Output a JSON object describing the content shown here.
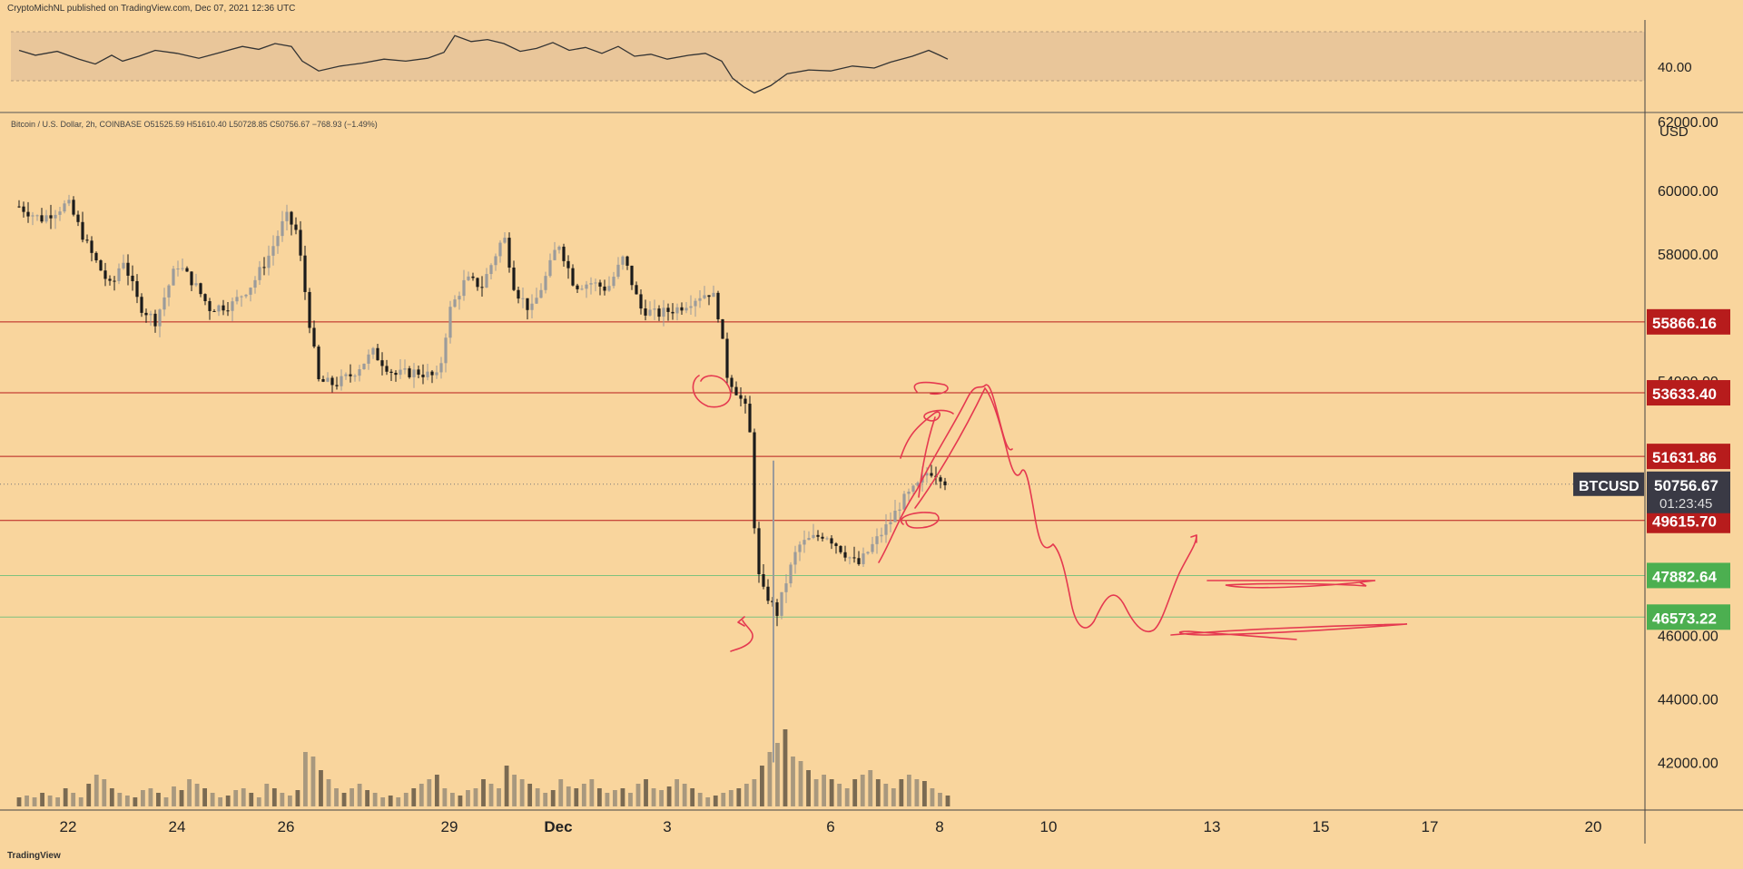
{
  "header": {
    "publisher": "CryptoMichNL published on TradingView.com, Dec 07, 2021 12:36 UTC"
  },
  "footer": {
    "brand": "TradingView"
  },
  "symbol_info": "Bitcoin / U.S. Dollar, 2h, COINBASE  O51525.59  H51610.40  L50728.85  C50756.67  −768.93 (−1.49%)",
  "rsi_label": "40.00",
  "currency": "USD",
  "colors": {
    "background": "#f9d59d",
    "up": "#9b9b9b",
    "down": "#1b1b1b",
    "resistance": "#b71c1c",
    "support": "#4caf50",
    "drawing": "#e53950"
  },
  "chart_data": {
    "type": "candlestick",
    "interval": "2h",
    "ylim": [
      40500,
      62400
    ],
    "y_ticks": [
      42000,
      44000,
      46000,
      48000,
      50000,
      52000,
      54000,
      56000,
      58000,
      60000
    ],
    "y_tick_labels": [
      "42000.00",
      "44000.00",
      "46000.00",
      "",
      "",
      "",
      "54000.00",
      "",
      "58000.00",
      "60000.00"
    ],
    "y_top_label": "62000.00",
    "x_ticks": [
      {
        "label": "22",
        "x": 0.0
      },
      {
        "label": "24",
        "x": 2.0
      },
      {
        "label": "26",
        "x": 4.0
      },
      {
        "label": "29",
        "x": 7.0
      },
      {
        "label": "Dec",
        "x": 9.0
      },
      {
        "label": "3",
        "x": 11.0
      },
      {
        "label": "6",
        "x": 14.0
      },
      {
        "label": "8",
        "x": 16.0
      },
      {
        "label": "10",
        "x": 18.0
      },
      {
        "label": "13",
        "x": 21.0
      },
      {
        "label": "15",
        "x": 23.0
      },
      {
        "label": "17",
        "x": 25.0
      },
      {
        "label": "20",
        "x": 28.0
      }
    ],
    "close_path": [
      [
        -0.9,
        59500
      ],
      [
        -0.5,
        59100
      ],
      [
        0.0,
        59600
      ],
      [
        0.4,
        58100
      ],
      [
        0.8,
        56900
      ],
      [
        1.0,
        57900
      ],
      [
        1.3,
        56400
      ],
      [
        1.6,
        55900
      ],
      [
        2.0,
        57700
      ],
      [
        2.3,
        57100
      ],
      [
        2.6,
        56300
      ],
      [
        3.0,
        56400
      ],
      [
        3.4,
        57100
      ],
      [
        3.7,
        58000
      ],
      [
        4.0,
        59200
      ],
      [
        4.2,
        58700
      ],
      [
        4.4,
        56200
      ],
      [
        4.6,
        54000
      ],
      [
        4.9,
        53900
      ],
      [
        5.2,
        54200
      ],
      [
        5.6,
        54900
      ],
      [
        6.0,
        54200
      ],
      [
        6.4,
        54300
      ],
      [
        6.8,
        54100
      ],
      [
        7.0,
        56200
      ],
      [
        7.3,
        57200
      ],
      [
        7.6,
        57000
      ],
      [
        8.0,
        58600
      ],
      [
        8.2,
        56900
      ],
      [
        8.5,
        56200
      ],
      [
        8.8,
        57400
      ],
      [
        9.0,
        58400
      ],
      [
        9.3,
        57000
      ],
      [
        9.6,
        57100
      ],
      [
        9.9,
        56900
      ],
      [
        10.2,
        57900
      ],
      [
        10.5,
        56300
      ],
      [
        10.8,
        56100
      ],
      [
        11.2,
        56300
      ],
      [
        11.6,
        56700
      ],
      [
        11.8,
        56800
      ],
      [
        11.9,
        56500
      ],
      [
        12.1,
        54200
      ],
      [
        12.3,
        53600
      ],
      [
        12.5,
        52900
      ],
      [
        12.6,
        49500
      ],
      [
        12.7,
        47500
      ],
      [
        12.9,
        47100
      ],
      [
        13.0,
        46600
      ],
      [
        13.2,
        47800
      ],
      [
        13.4,
        48800
      ],
      [
        13.6,
        49000
      ],
      [
        13.9,
        49200
      ],
      [
        14.2,
        48700
      ],
      [
        14.5,
        48200
      ],
      [
        14.8,
        48900
      ],
      [
        15.1,
        49600
      ],
      [
        15.3,
        50200
      ],
      [
        15.6,
        50700
      ],
      [
        15.8,
        51200
      ],
      [
        16.0,
        51050
      ],
      [
        16.15,
        50760
      ]
    ],
    "series": [
      {
        "name": "BTCUSD",
        "last": 50756.67
      }
    ],
    "price_levels": [
      {
        "label": "55866.16",
        "value": 55866.16,
        "kind": "resistance"
      },
      {
        "label": "53633.40",
        "value": 53633.4,
        "kind": "resistance"
      },
      {
        "label": "51631.86",
        "value": 51631.86,
        "kind": "resistance"
      },
      {
        "label": "49615.70",
        "value": 49615.7,
        "kind": "resistance"
      },
      {
        "label": "47882.64",
        "value": 47882.64,
        "kind": "support"
      },
      {
        "label": "46573.22",
        "value": 46573.22,
        "kind": "support"
      }
    ],
    "current": {
      "symbol": "BTCUSD",
      "price": "50756.67",
      "countdown": "01:23:45",
      "value": 50756.67
    },
    "rsi_path": [
      [
        -0.9,
        0.62
      ],
      [
        -0.6,
        0.52
      ],
      [
        -0.2,
        0.6
      ],
      [
        0.2,
        0.44
      ],
      [
        0.5,
        0.34
      ],
      [
        0.8,
        0.52
      ],
      [
        1.0,
        0.4
      ],
      [
        1.3,
        0.5
      ],
      [
        1.6,
        0.62
      ],
      [
        2.0,
        0.56
      ],
      [
        2.4,
        0.46
      ],
      [
        2.8,
        0.58
      ],
      [
        3.2,
        0.7
      ],
      [
        3.5,
        0.64
      ],
      [
        3.8,
        0.76
      ],
      [
        4.1,
        0.7
      ],
      [
        4.3,
        0.4
      ],
      [
        4.6,
        0.2
      ],
      [
        5.0,
        0.3
      ],
      [
        5.4,
        0.36
      ],
      [
        5.8,
        0.44
      ],
      [
        6.2,
        0.4
      ],
      [
        6.6,
        0.46
      ],
      [
        6.9,
        0.58
      ],
      [
        7.1,
        0.92
      ],
      [
        7.4,
        0.8
      ],
      [
        7.7,
        0.84
      ],
      [
        8.0,
        0.76
      ],
      [
        8.3,
        0.6
      ],
      [
        8.6,
        0.66
      ],
      [
        8.9,
        0.78
      ],
      [
        9.2,
        0.62
      ],
      [
        9.5,
        0.68
      ],
      [
        9.8,
        0.56
      ],
      [
        10.1,
        0.7
      ],
      [
        10.4,
        0.5
      ],
      [
        10.7,
        0.54
      ],
      [
        11.0,
        0.44
      ],
      [
        11.4,
        0.52
      ],
      [
        11.7,
        0.56
      ],
      [
        12.0,
        0.4
      ],
      [
        12.2,
        0.05
      ],
      [
        12.4,
        -0.12
      ],
      [
        12.6,
        -0.25
      ],
      [
        12.9,
        -0.1
      ],
      [
        13.2,
        0.14
      ],
      [
        13.6,
        0.22
      ],
      [
        14.0,
        0.2
      ],
      [
        14.4,
        0.3
      ],
      [
        14.8,
        0.26
      ],
      [
        15.1,
        0.38
      ],
      [
        15.5,
        0.5
      ],
      [
        15.8,
        0.62
      ],
      [
        16.0,
        0.52
      ],
      [
        16.15,
        0.44
      ]
    ],
    "volume": [
      0.1,
      0.12,
      0.1,
      0.15,
      0.12,
      0.1,
      0.2,
      0.15,
      0.1,
      0.25,
      0.35,
      0.3,
      0.2,
      0.15,
      0.12,
      0.1,
      0.18,
      0.2,
      0.15,
      0.1,
      0.22,
      0.18,
      0.3,
      0.25,
      0.2,
      0.15,
      0.1,
      0.12,
      0.18,
      0.2,
      0.15,
      0.1,
      0.25,
      0.2,
      0.15,
      0.12,
      0.18,
      0.6,
      0.55,
      0.4,
      0.3,
      0.2,
      0.15,
      0.2,
      0.25,
      0.18,
      0.15,
      0.1,
      0.12,
      0.1,
      0.15,
      0.2,
      0.25,
      0.3,
      0.35,
      0.2,
      0.15,
      0.12,
      0.18,
      0.2,
      0.3,
      0.25,
      0.2,
      0.45,
      0.35,
      0.3,
      0.25,
      0.2,
      0.15,
      0.18,
      0.3,
      0.22,
      0.2,
      0.25,
      0.3,
      0.2,
      0.15,
      0.18,
      0.2,
      0.15,
      0.25,
      0.3,
      0.2,
      0.18,
      0.22,
      0.3,
      0.25,
      0.2,
      0.15,
      0.1,
      0.12,
      0.15,
      0.18,
      0.2,
      0.25,
      0.3,
      0.45,
      0.6,
      0.7,
      0.85,
      0.55,
      0.5,
      0.4,
      0.3,
      0.35,
      0.3,
      0.25,
      0.2,
      0.3,
      0.35,
      0.4,
      0.3,
      0.25,
      0.2,
      0.3,
      0.35,
      0.3,
      0.28,
      0.2,
      0.15,
      0.12
    ]
  }
}
